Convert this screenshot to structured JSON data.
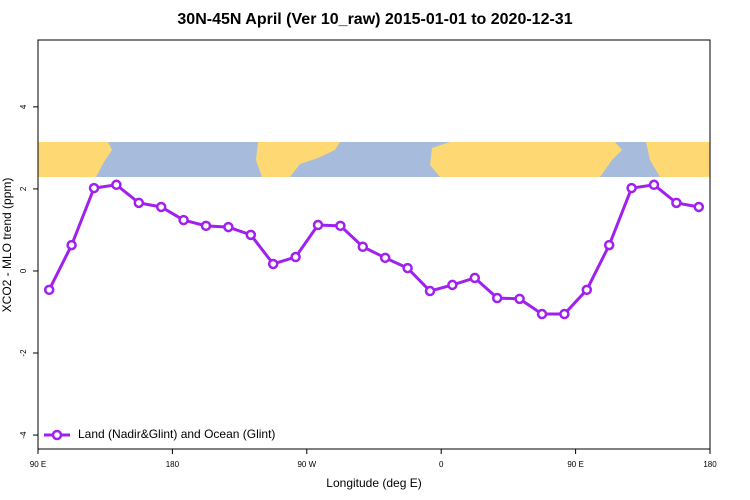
{
  "chart_data": {
    "type": "line",
    "title": "30N-45N April (Ver 10_raw)   2015-01-01 to 2020-12-31",
    "x_label": "Longitude (deg E)",
    "y_label": "XCO2 - MLO trend (ppm)",
    "x": [
      97.5,
      112.5,
      127.5,
      142.5,
      157.5,
      172.5,
      187.5,
      202.5,
      217.5,
      232.5,
      247.5,
      262.5,
      277.5,
      292.5,
      307.5,
      322.5,
      337.5,
      352.5,
      367.5,
      382.5,
      397.5,
      412.5,
      427.5,
      442.5,
      457.5,
      472.5,
      487.5,
      502.5,
      517.5,
      532.5
    ],
    "series": [
      {
        "name": "Land (Nadir&Glint) and Ocean (Glint)",
        "color": "#a020f0",
        "values": [
          -0.46,
          0.63,
          2.02,
          2.1,
          1.66,
          1.56,
          1.24,
          1.1,
          1.07,
          0.88,
          0.17,
          0.34,
          1.12,
          1.1,
          0.59,
          0.32,
          0.07,
          -0.49,
          -0.34,
          -0.17,
          -0.66,
          -0.68,
          -1.05,
          -1.05,
          -0.46,
          0.63,
          2.02,
          2.1,
          1.66,
          1.56
        ]
      }
    ],
    "xlim": [
      90,
      540
    ],
    "xticks": [
      {
        "value": 90,
        "label": "90 E"
      },
      180,
      {
        "value": 270,
        "label": "90 W"
      },
      {
        "value": 360,
        "label": "0"
      },
      {
        "value": 450,
        "label": "90 E"
      },
      {
        "value": 540,
        "label": "180"
      }
    ],
    "ylim": [
      -4.34,
      5.63
    ],
    "yticks": [
      -4,
      -2,
      0,
      2,
      4
    ],
    "legend": "bottom-left"
  }
}
